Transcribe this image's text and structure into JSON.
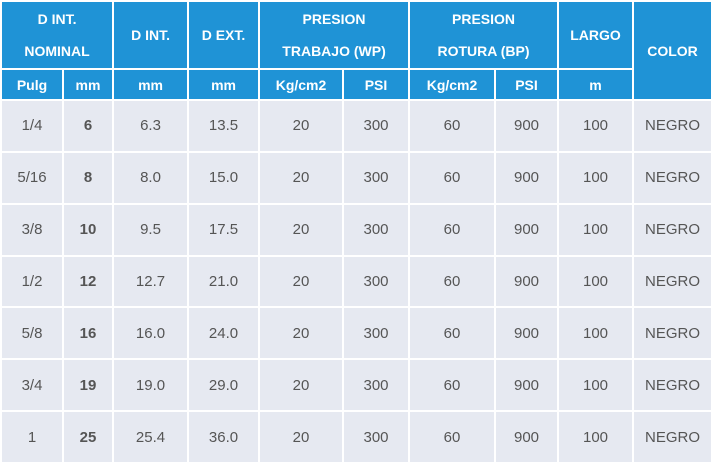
{
  "table": {
    "groups": [
      [
        "D INT.",
        "NOMINAL"
      ],
      [
        "D INT."
      ],
      [
        "D EXT."
      ],
      [
        "PRESION",
        "TRABAJO (WP)"
      ],
      [
        "PRESION",
        "ROTURA (BP)"
      ],
      [
        "LARGO"
      ],
      [
        "COLOR"
      ]
    ],
    "units": [
      "Pulg",
      "mm",
      "mm",
      "mm",
      "Kg/cm2",
      "PSI",
      "Kg/cm2",
      "PSI",
      "m"
    ],
    "rows": [
      [
        "1/4",
        "6",
        "6.3",
        "13.5",
        "20",
        "300",
        "60",
        "900",
        "100",
        "NEGRO"
      ],
      [
        "5/16",
        "8",
        "8.0",
        "15.0",
        "20",
        "300",
        "60",
        "900",
        "100",
        "NEGRO"
      ],
      [
        "3/8",
        "10",
        "9.5",
        "17.5",
        "20",
        "300",
        "60",
        "900",
        "100",
        "NEGRO"
      ],
      [
        "1/2",
        "12",
        "12.7",
        "21.0",
        "20",
        "300",
        "60",
        "900",
        "100",
        "NEGRO"
      ],
      [
        "5/8",
        "16",
        "16.0",
        "24.0",
        "20",
        "300",
        "60",
        "900",
        "100",
        "NEGRO"
      ],
      [
        "3/4",
        "19",
        "19.0",
        "29.0",
        "20",
        "300",
        "60",
        "900",
        "100",
        "NEGRO"
      ],
      [
        "1",
        "25",
        "25.4",
        "36.0",
        "20",
        "300",
        "60",
        "900",
        "100",
        "NEGRO"
      ]
    ]
  }
}
